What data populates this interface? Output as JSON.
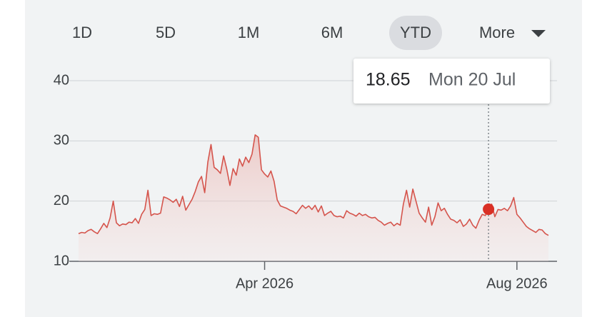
{
  "range_selector": {
    "ranges": [
      "1D",
      "5D",
      "1M",
      "6M",
      "YTD"
    ],
    "selected": 4,
    "more_label": "More"
  },
  "chart_data": {
    "type": "line",
    "color": "#d5544c",
    "values": [
      14.6,
      14.8,
      14.7,
      15.1,
      15.3,
      14.9,
      14.6,
      15.4,
      16.3,
      15.6,
      17.2,
      20.0,
      16.4,
      15.9,
      16.2,
      16.1,
      16.5,
      16.4,
      17.1,
      16.3,
      17.8,
      18.6,
      21.8,
      17.6,
      17.9,
      17.8,
      18.0,
      20.7,
      20.5,
      20.2,
      19.8,
      20.3,
      19.1,
      20.8,
      18.5,
      19.4,
      20.3,
      21.6,
      23.2,
      24.1,
      21.4,
      26.5,
      29.4,
      25.6,
      25.2,
      24.6,
      27.5,
      25.3,
      22.6,
      25.4,
      24.3,
      27.0,
      25.8,
      27.3,
      26.4,
      27.8,
      31.0,
      30.6,
      25.2,
      24.5,
      24.0,
      25.0,
      23.3,
      20.2,
      19.2,
      19.0,
      18.8,
      18.5,
      18.3,
      17.9,
      18.6,
      19.3,
      18.8,
      19.2,
      18.6,
      19.3,
      18.2,
      19.2,
      17.6,
      18.0,
      18.3,
      17.6,
      17.4,
      17.5,
      17.2,
      18.4,
      18.0,
      17.8,
      17.5,
      18.0,
      17.6,
      17.8,
      17.4,
      17.2,
      17.3,
      16.8,
      16.5,
      16.0,
      16.3,
      16.5,
      15.9,
      16.3,
      16.0,
      19.5,
      21.8,
      19.0,
      22.0,
      20.0,
      18.0,
      17.2,
      16.5,
      19.0,
      16.0,
      17.4,
      19.7,
      18.4,
      18.8,
      17.8,
      17.0,
      16.8,
      16.4,
      16.9,
      15.8,
      16.2,
      17.0,
      16.0,
      15.5,
      16.8,
      17.8,
      17.6,
      18.65,
      19.5,
      17.4,
      18.6,
      18.5,
      18.8,
      18.4,
      19.2,
      20.6,
      17.8,
      17.2,
      16.5,
      15.8,
      15.4,
      15.1,
      14.8,
      15.3,
      15.2,
      14.6,
      14.3
    ],
    "xlim": [
      0,
      149
    ],
    "xticks": [
      {
        "value": 59,
        "label": "Apr 2026"
      },
      {
        "value": 139,
        "label": "Aug 2026"
      }
    ],
    "ylim": [
      10,
      40
    ],
    "yticks": [
      10,
      20,
      30,
      40
    ],
    "grid": true,
    "highlight": {
      "index": 130,
      "value": 18.65,
      "label": "Mon 20 Jul"
    }
  }
}
